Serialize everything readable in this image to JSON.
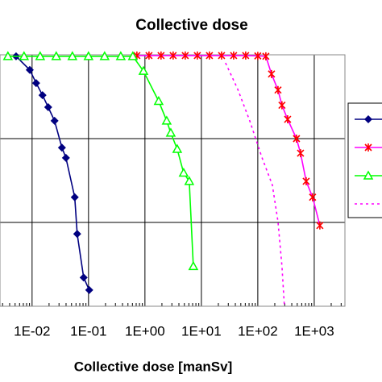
{
  "chart_data": {
    "type": "line",
    "title": "Collective dose",
    "x_label": "Collective dose [manSv]",
    "xscale": "log",
    "yscale": "log",
    "grid": true,
    "legend": "right",
    "xlim": [
      0.0027,
      3500
    ],
    "ylim": [
      0.001,
      1
    ],
    "xticks": [
      {
        "value": 0.01,
        "label": "1E-02"
      },
      {
        "value": 0.1,
        "label": "1E-01"
      },
      {
        "value": 1,
        "label": "1E+00"
      },
      {
        "value": 10,
        "label": "1E+01"
      },
      {
        "value": 100,
        "label": "1E+02"
      },
      {
        "value": 1000,
        "label": "1E+03"
      }
    ],
    "yticks": [
      0.001,
      0.01,
      0.1,
      1
    ],
    "series": [
      {
        "color": "#000080",
        "marker": "diamond",
        "marker_color": "#000080",
        "dash": "solid",
        "x": [
          0.0052,
          0.0091,
          0.0118,
          0.0153,
          0.0193,
          0.025,
          0.0338,
          0.0398,
          0.057,
          0.063,
          0.082,
          0.103
        ],
        "values": [
          0.96,
          0.66,
          0.46,
          0.33,
          0.237,
          0.163,
          0.078,
          0.059,
          0.02,
          0.0073,
          0.0022,
          0.00156
        ]
      },
      {
        "color": "#ff00ff",
        "marker": "cross",
        "marker_color": "#ff0000",
        "dash": "solid",
        "x": [
          0.72,
          1.18,
          1.93,
          3.16,
          5.18,
          8.48,
          13.9,
          22.8,
          37.3,
          61,
          100,
          139,
          175,
          228,
          268,
          338,
          485,
          572,
          720,
          936,
          1259
        ],
        "values": [
          0.98,
          0.98,
          0.98,
          0.98,
          0.98,
          0.98,
          0.98,
          0.98,
          0.98,
          0.98,
          0.97,
          0.96,
          0.59,
          0.38,
          0.25,
          0.17,
          0.1,
          0.067,
          0.031,
          0.02,
          0.0092
        ]
      },
      {
        "color": "#00ff00",
        "marker": "triangle",
        "marker_color": "#00ff00",
        "dash": "solid",
        "x": [
          0.00373,
          0.0072,
          0.0139,
          0.0268,
          0.0518,
          0.1,
          0.193,
          0.373,
          0.61,
          0.94,
          1.75,
          2.43,
          2.87,
          3.73,
          4.85,
          6.1,
          7.2
        ],
        "values": [
          0.96,
          0.96,
          0.96,
          0.96,
          0.96,
          0.96,
          0.96,
          0.96,
          0.96,
          0.64,
          0.28,
          0.163,
          0.117,
          0.075,
          0.039,
          0.031,
          0.003
        ]
      },
      {
        "color": "#ff00ff",
        "marker": "none",
        "dash": "dotted",
        "x": [
          26.8,
          44,
          72,
          118,
          181,
          228,
          268,
          296
        ],
        "values": [
          0.8,
          0.39,
          0.163,
          0.06,
          0.028,
          0.0102,
          0.003,
          0.001
        ]
      }
    ]
  }
}
